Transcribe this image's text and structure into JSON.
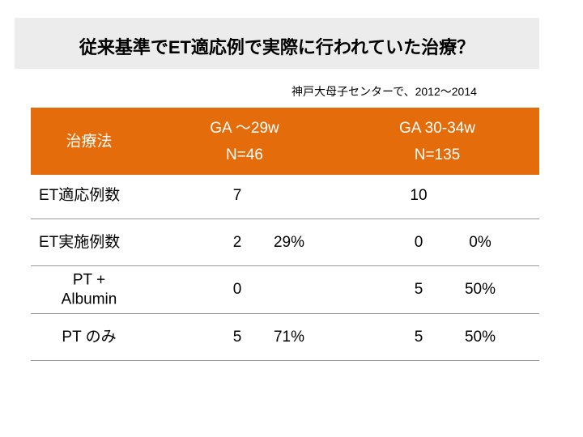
{
  "title": "従来基準でET適応例で実際に行われていた治療？",
  "subtitle": "神戸大母子センターで、2012～2014",
  "table": {
    "header": [
      "治療法",
      [
        "GA ～29w",
        "N=46"
      ],
      [
        "GA 30-34w",
        "N=135"
      ]
    ],
    "rows": [
      {
        "label": [
          "ET適応例数"
        ],
        "cells": [
          "7",
          null,
          "10",
          null
        ]
      },
      {
        "label": [
          "ET実施例数"
        ],
        "cells": [
          "2",
          "29%",
          "0",
          "0%"
        ]
      },
      {
        "label": [
          "PT +",
          "Albumin"
        ],
        "cells": [
          "0",
          null,
          "5",
          "50%"
        ]
      },
      {
        "label": [
          "PT のみ"
        ],
        "cells": [
          "5",
          "71%",
          "5",
          "50%"
        ]
      }
    ]
  }
}
